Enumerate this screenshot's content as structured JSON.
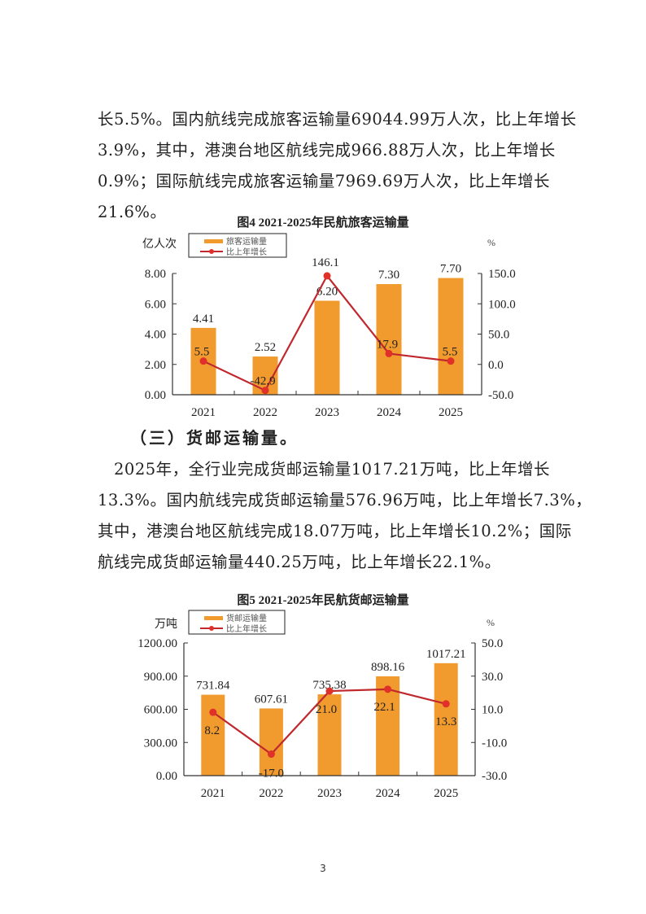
{
  "body": {
    "para1_lines": [
      "长5.5%。国内航线完成旅客运输量69044.99万人次，比上年增长",
      "3.9%，其中，港澳台地区航线完成966.88万人次，比上年增长",
      "0.9%；国际航线完成旅客运输量7969.69万人次，比上年增长",
      "21.6%。"
    ],
    "section_heading": "（三）货邮运输量。",
    "para2_lines": [
      "　2025年，全行业完成货邮运输量1017.21万吨，比上年增长",
      "13.3%。国内航线完成货邮运输量576.96万吨，比上年增长7.3%，",
      "其中，港澳台地区航线完成18.07万吨，比上年增长10.2%；国际",
      "航线完成货邮运输量440.25万吨，比上年增长22.1%。"
    ]
  },
  "colors": {
    "bar": "#F19A2D",
    "line": "#C0282E",
    "marker": "#E0302A",
    "axis": "#333333"
  },
  "page_number": "3",
  "chart_data": [
    {
      "type": "bar+line",
      "title": "图4  2021-2025年民航旅客运输量",
      "categories": [
        "2021",
        "2022",
        "2023",
        "2024",
        "2025"
      ],
      "series": [
        {
          "name": "旅客运输量",
          "type": "bar",
          "axis": "left",
          "values": [
            4.41,
            2.52,
            6.2,
            7.3,
            7.7
          ],
          "labels": [
            "4.41",
            "2.52",
            "6.20",
            "7.30",
            "7.70"
          ]
        },
        {
          "name": "比上年增长",
          "type": "line",
          "axis": "right",
          "values": [
            5.5,
            -42.9,
            146.1,
            17.9,
            5.5
          ],
          "labels": [
            "5.5",
            "-42.9",
            "146.1",
            "17.9",
            "5.5"
          ]
        }
      ],
      "ylabel": "亿人次",
      "y2label": "%",
      "ylim": [
        0,
        8
      ],
      "y2lim": [
        -50,
        150
      ],
      "yticks": [
        "0.00",
        "2.00",
        "4.00",
        "6.00",
        "8.00"
      ],
      "y2ticks": [
        "-50.0",
        "0.0",
        "50.0",
        "100.0",
        "150.0"
      ],
      "legend": [
        "旅客运输量",
        "比上年增长"
      ],
      "legend_position": "top-left",
      "grid": false
    },
    {
      "type": "bar+line",
      "title": "图5  2021-2025年民航货邮运输量",
      "categories": [
        "2021",
        "2022",
        "2023",
        "2024",
        "2025"
      ],
      "series": [
        {
          "name": "货邮运输量",
          "type": "bar",
          "axis": "left",
          "values": [
            731.84,
            607.61,
            735.38,
            898.16,
            1017.21
          ],
          "labels": [
            "731.84",
            "607.61",
            "735.38",
            "898.16",
            "1017.21"
          ]
        },
        {
          "name": "比上年增长",
          "type": "line",
          "axis": "right",
          "values": [
            8.2,
            -17.0,
            21.0,
            22.1,
            13.3
          ],
          "labels": [
            "8.2",
            "-17.0",
            "21.0",
            "22.1",
            "13.3"
          ]
        }
      ],
      "ylabel": "万吨",
      "y2label": "%",
      "ylim": [
        0,
        1200
      ],
      "y2lim": [
        -30,
        50
      ],
      "yticks": [
        "0.00",
        "300.00",
        "600.00",
        "900.00",
        "1200.00"
      ],
      "y2ticks": [
        "-30.0",
        "-10.0",
        "10.0",
        "30.0",
        "50.0"
      ],
      "legend": [
        "货邮运输量",
        "比上年增长"
      ],
      "legend_position": "top-left",
      "grid": false
    }
  ]
}
